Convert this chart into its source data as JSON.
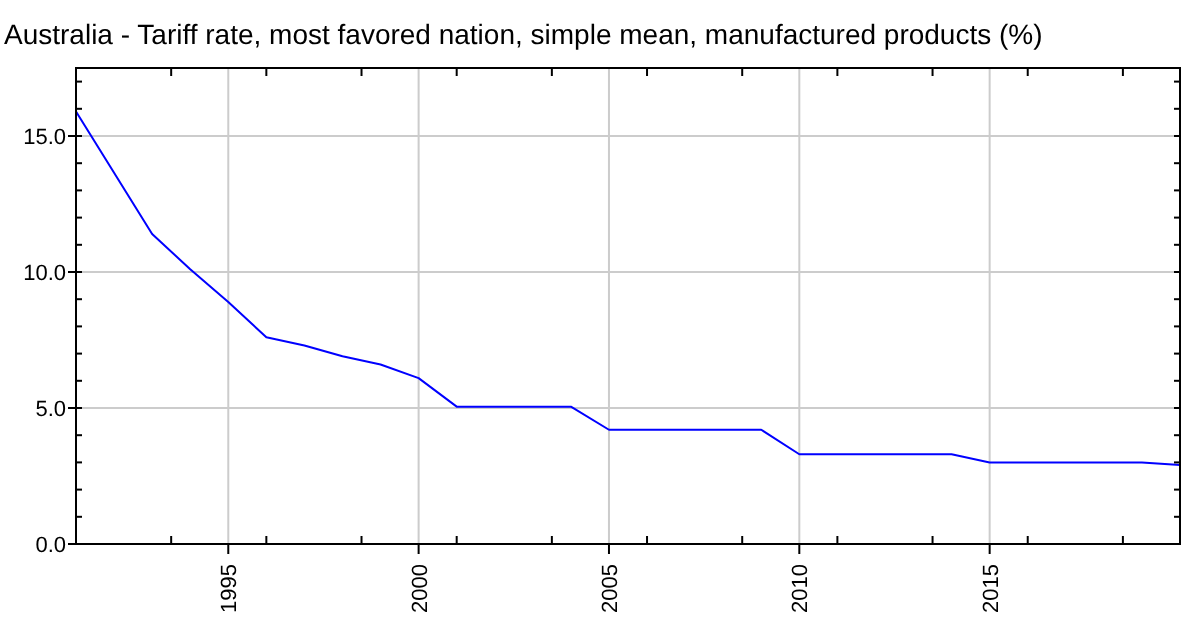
{
  "chart_data": {
    "type": "line",
    "title": "Australia - Tariff rate, most favored nation, simple mean, manufactured products (%)",
    "x": [
      1991,
      1993,
      1994,
      1995,
      1996,
      1997,
      1998,
      1999,
      2000,
      2001,
      2004,
      2005,
      2009,
      2010,
      2014,
      2015,
      2019,
      2020
    ],
    "series": [
      {
        "color": "#0000ff",
        "values": [
          15.9,
          11.4,
          10.1,
          8.9,
          7.6,
          7.3,
          6.9,
          6.6,
          6.1,
          5.05,
          5.05,
          4.2,
          4.2,
          3.3,
          3.3,
          3.0,
          3.0,
          2.9
        ]
      }
    ],
    "xlim": [
      1991,
      2020
    ],
    "xticks": [
      1995,
      2000,
      2005,
      2010,
      2015
    ],
    "ylim": [
      0,
      17.5
    ],
    "yticks": [
      {
        "value": 0,
        "label": "0.0"
      },
      {
        "value": 5,
        "label": "5.0"
      },
      {
        "value": 10,
        "label": "10.0"
      },
      {
        "value": 15,
        "label": "15.0"
      }
    ],
    "grid": true,
    "marker": "none",
    "line_style": "solid"
  }
}
